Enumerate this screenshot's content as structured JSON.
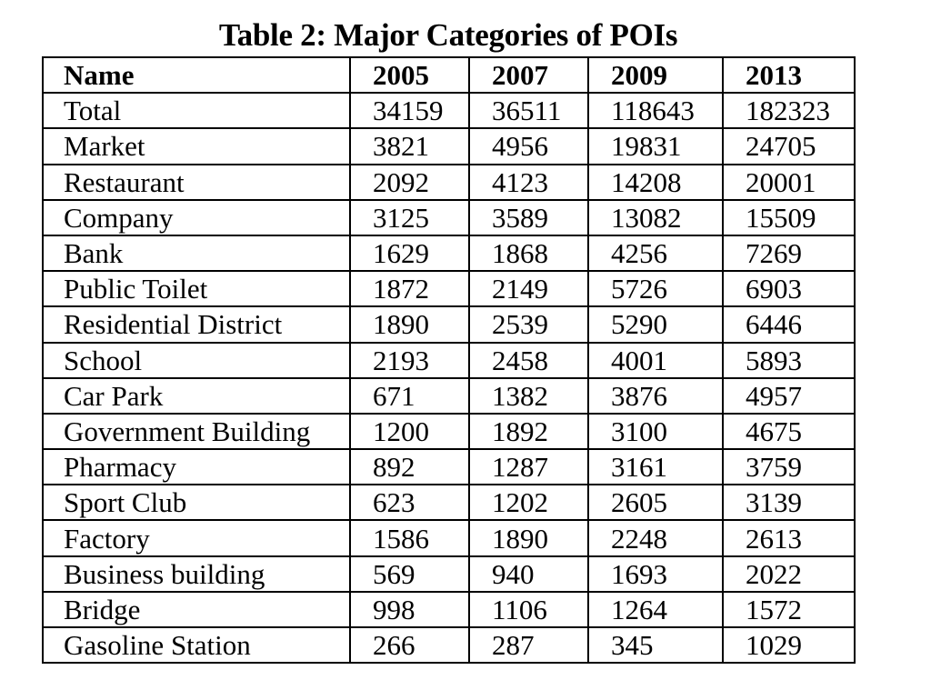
{
  "caption": "Table 2: Major Categories of POIs",
  "table": {
    "headers": [
      "Name",
      "2005",
      "2007",
      "2009",
      "2013"
    ],
    "rows": [
      [
        "Total",
        "34159",
        "36511",
        "118643",
        "182323"
      ],
      [
        "Market",
        "3821",
        "4956",
        "19831",
        "24705"
      ],
      [
        "Restaurant",
        "2092",
        "4123",
        "14208",
        "20001"
      ],
      [
        "Company",
        "3125",
        "3589",
        "13082",
        "15509"
      ],
      [
        "Bank",
        "1629",
        "1868",
        "4256",
        "7269"
      ],
      [
        "Public Toilet",
        "1872",
        "2149",
        "5726",
        "6903"
      ],
      [
        "Residential District",
        "1890",
        "2539",
        "5290",
        "6446"
      ],
      [
        "School",
        "2193",
        "2458",
        "4001",
        "5893"
      ],
      [
        "Car Park",
        "671",
        "1382",
        "3876",
        "4957"
      ],
      [
        "Government Building",
        "1200",
        "1892",
        "3100",
        "4675"
      ],
      [
        "Pharmacy",
        "892",
        "1287",
        "3161",
        "3759"
      ],
      [
        "Sport Club",
        "623",
        "1202",
        "2605",
        "3139"
      ],
      [
        "Factory",
        "1586",
        "1890",
        "2248",
        "2613"
      ],
      [
        "Business building",
        "569",
        "940",
        "1693",
        "2022"
      ],
      [
        "Bridge",
        "998",
        "1106",
        "1264",
        "1572"
      ],
      [
        "Gasoline Station",
        "266",
        "287",
        "345",
        "1029"
      ]
    ]
  }
}
